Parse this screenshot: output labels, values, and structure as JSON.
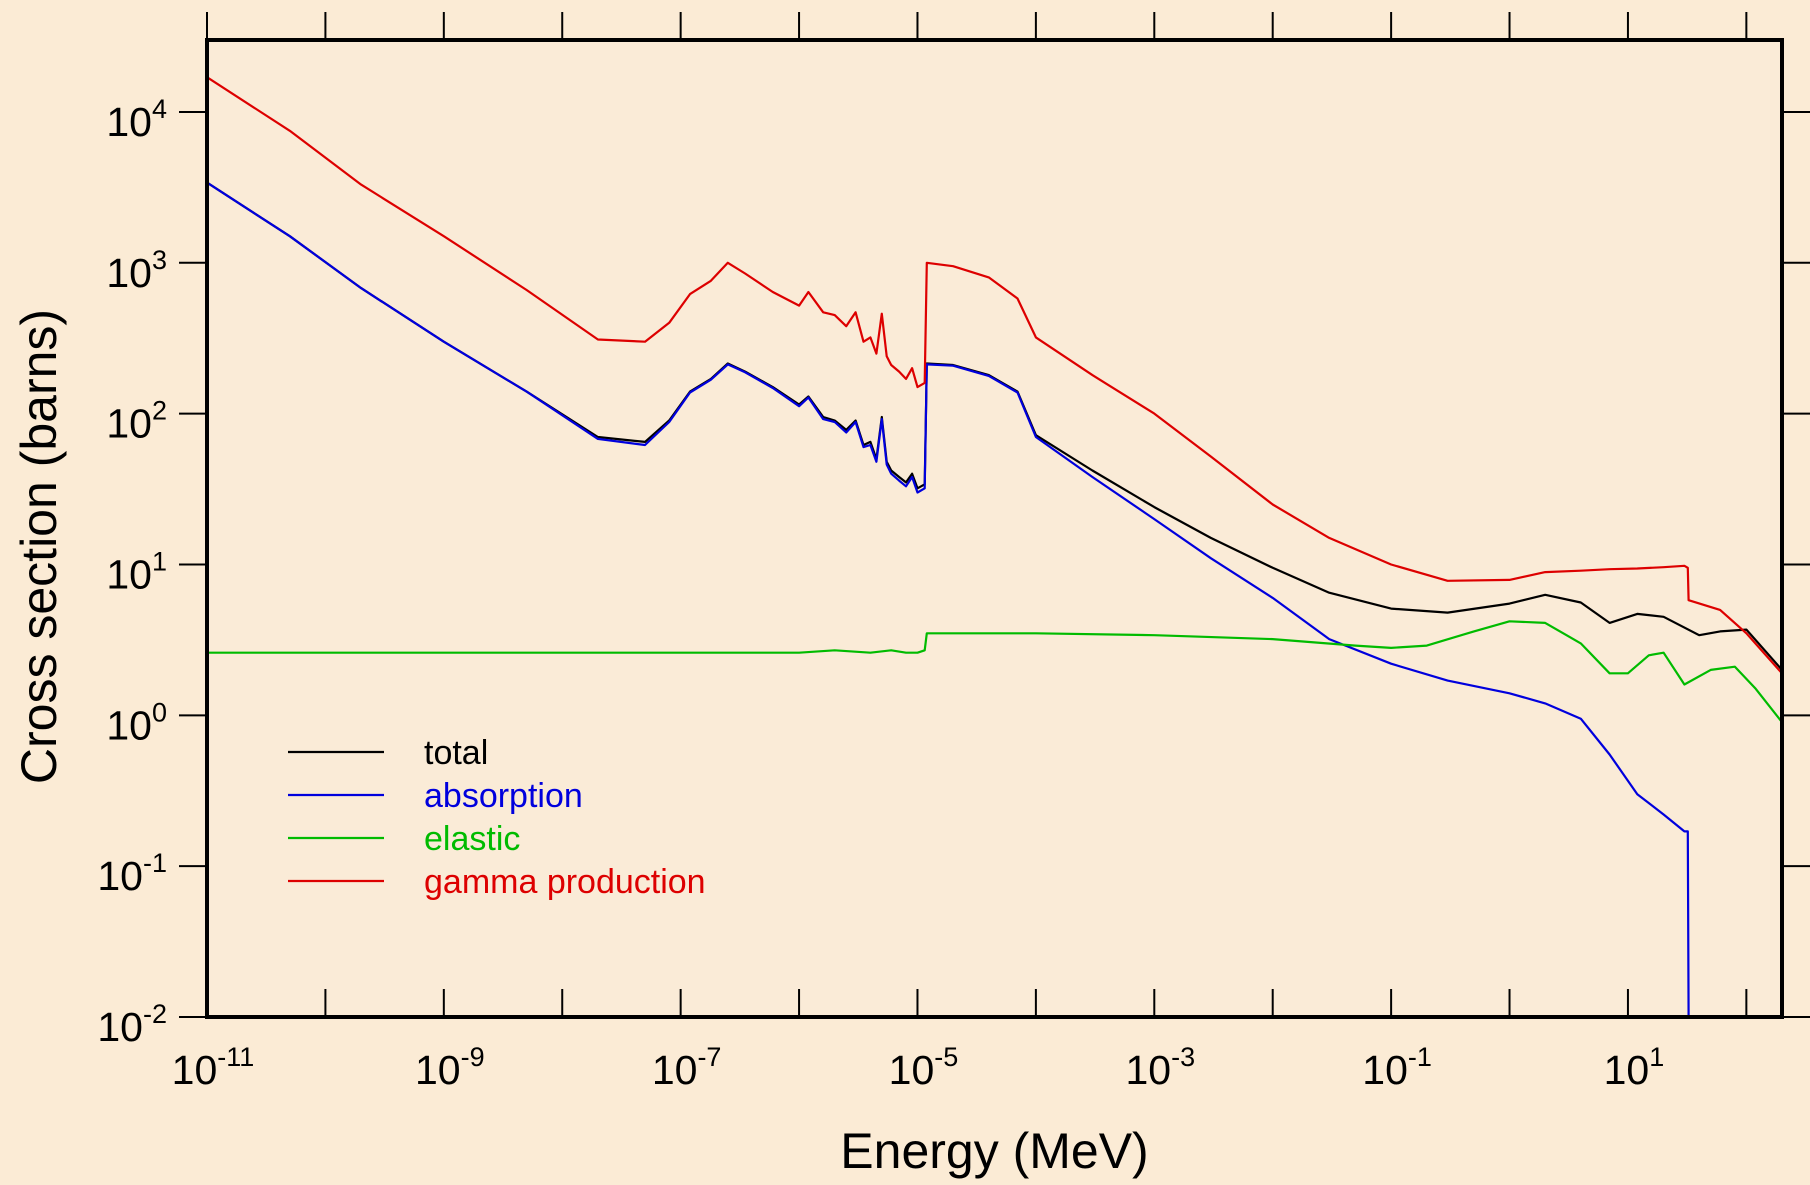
{
  "chart_data": {
    "type": "line",
    "title": "",
    "xlabel": "Energy (MeV)",
    "ylabel": "Cross section (barns)",
    "xscale": "log",
    "yscale": "log",
    "xlim": [
      1e-11,
      200
    ],
    "ylim": [
      0.01,
      30000
    ],
    "x_ticks": [
      {
        "value": 1e-11,
        "base": "10",
        "exp": "-11"
      },
      {
        "value": 1e-09,
        "base": "10",
        "exp": "-9"
      },
      {
        "value": 1e-07,
        "base": "10",
        "exp": "-7"
      },
      {
        "value": 1e-05,
        "base": "10",
        "exp": "-5"
      },
      {
        "value": 0.001,
        "base": "10",
        "exp": "-3"
      },
      {
        "value": 0.1,
        "base": "10",
        "exp": "-1"
      },
      {
        "value": 10,
        "base": "10",
        "exp": "1"
      }
    ],
    "y_ticks": [
      {
        "value": 0.01,
        "base": "10",
        "exp": "-2"
      },
      {
        "value": 0.1,
        "base": "10",
        "exp": "-1"
      },
      {
        "value": 1,
        "base": "10",
        "exp": "0"
      },
      {
        "value": 10,
        "base": "10",
        "exp": "1"
      },
      {
        "value": 100,
        "base": "10",
        "exp": "2"
      },
      {
        "value": 1000,
        "base": "10",
        "exp": "3"
      },
      {
        "value": 10000,
        "base": "10",
        "exp": "4"
      }
    ],
    "grid": false,
    "legend_position": "lower-left",
    "series": [
      {
        "name": "total",
        "color": "#000000",
        "x": [
          1e-11,
          5e-11,
          2e-10,
          1e-09,
          5e-09,
          2e-08,
          5e-08,
          8e-08,
          1.2e-07,
          1.8e-07,
          2.5e-07,
          3.5e-07,
          6e-07,
          1e-06,
          1.2e-06,
          1.6e-06,
          2e-06,
          2.5e-06,
          3e-06,
          3.5e-06,
          4e-06,
          4.5e-06,
          5e-06,
          5.5e-06,
          6e-06,
          7e-06,
          8e-06,
          9e-06,
          1e-05,
          1.15e-05,
          1.2e-05,
          2e-05,
          4e-05,
          7e-05,
          0.0001,
          0.0003,
          0.001,
          0.003,
          0.01,
          0.03,
          0.1,
          0.3,
          1,
          2,
          4,
          7,
          12,
          20,
          40,
          60,
          100,
          200
        ],
        "y": [
          3400,
          1500,
          680,
          300,
          140,
          70,
          65,
          90,
          140,
          170,
          215,
          190,
          150,
          115,
          130,
          95,
          90,
          78,
          90,
          62,
          65,
          50,
          95,
          48,
          42,
          38,
          35,
          40,
          32,
          34,
          215,
          210,
          180,
          140,
          72,
          42,
          24,
          15,
          9.5,
          6.5,
          5.1,
          4.8,
          5.5,
          6.3,
          5.6,
          4.1,
          4.7,
          4.5,
          3.4,
          3.6,
          3.7,
          2.0
        ]
      },
      {
        "name": "absorption",
        "color": "#0000dd",
        "x": [
          1e-11,
          5e-11,
          2e-10,
          1e-09,
          5e-09,
          2e-08,
          5e-08,
          8e-08,
          1.2e-07,
          1.8e-07,
          2.5e-07,
          3.5e-07,
          6e-07,
          1e-06,
          1.2e-06,
          1.6e-06,
          2e-06,
          2.5e-06,
          3e-06,
          3.5e-06,
          4e-06,
          4.5e-06,
          5e-06,
          5.5e-06,
          6e-06,
          7e-06,
          8e-06,
          9e-06,
          1e-05,
          1.15e-05,
          1.2e-05,
          2e-05,
          4e-05,
          7e-05,
          0.0001,
          0.0003,
          0.001,
          0.003,
          0.01,
          0.03,
          0.1,
          0.3,
          1,
          2,
          4,
          7,
          12,
          20,
          30,
          32,
          32.5,
          60,
          100,
          200
        ],
        "y": [
          3400,
          1500,
          680,
          300,
          140,
          68,
          62,
          88,
          138,
          168,
          212,
          188,
          148,
          112,
          128,
          92,
          88,
          75,
          88,
          60,
          62,
          48,
          92,
          46,
          40,
          36,
          33,
          38,
          30,
          32,
          212,
          208,
          178,
          138,
          70,
          38,
          20,
          11,
          6,
          3.2,
          2.2,
          1.7,
          1.4,
          1.2,
          0.95,
          0.55,
          0.3,
          0.22,
          0.17,
          0.17,
          0.01,
          0.01,
          0.01,
          0.01
        ]
      },
      {
        "name": "elastic",
        "color": "#00bb00",
        "x": [
          1e-11,
          1e-09,
          1e-07,
          1e-06,
          2e-06,
          4e-06,
          6e-06,
          8e-06,
          1e-05,
          1.15e-05,
          1.2e-05,
          0.0001,
          0.001,
          0.01,
          0.05,
          0.1,
          0.2,
          0.5,
          1,
          2,
          4,
          7,
          10,
          15,
          20,
          30,
          50,
          80,
          120,
          200
        ],
        "y": [
          2.6,
          2.6,
          2.6,
          2.6,
          2.7,
          2.6,
          2.7,
          2.6,
          2.6,
          2.7,
          3.5,
          3.5,
          3.4,
          3.2,
          2.9,
          2.8,
          2.9,
          3.6,
          4.2,
          4.1,
          3.0,
          1.9,
          1.9,
          2.5,
          2.6,
          1.6,
          2.0,
          2.1,
          1.5,
          0.9
        ]
      },
      {
        "name": "gamma production",
        "color": "#dd0000",
        "x": [
          1e-11,
          5e-11,
          2e-10,
          1e-09,
          5e-09,
          2e-08,
          5e-08,
          8e-08,
          1.2e-07,
          1.8e-07,
          2.5e-07,
          3.5e-07,
          6e-07,
          1e-06,
          1.2e-06,
          1.6e-06,
          2e-06,
          2.5e-06,
          3e-06,
          3.5e-06,
          4e-06,
          4.5e-06,
          5e-06,
          5.5e-06,
          6e-06,
          7e-06,
          8e-06,
          9e-06,
          1e-05,
          1.15e-05,
          1.2e-05,
          2e-05,
          4e-05,
          7e-05,
          0.0001,
          0.0003,
          0.001,
          0.003,
          0.01,
          0.03,
          0.1,
          0.3,
          1,
          2,
          4,
          7,
          12,
          20,
          30,
          32,
          32.5,
          60,
          100,
          200
        ],
        "y": [
          17000,
          7500,
          3300,
          1500,
          660,
          310,
          300,
          400,
          620,
          760,
          1000,
          850,
          640,
          520,
          640,
          470,
          450,
          380,
          470,
          300,
          320,
          250,
          460,
          240,
          210,
          190,
          170,
          200,
          150,
          160,
          1000,
          950,
          800,
          580,
          320,
          180,
          100,
          52,
          25,
          15,
          10,
          7.8,
          7.9,
          8.9,
          9.1,
          9.3,
          9.4,
          9.6,
          9.8,
          9.5,
          5.8,
          5.0,
          3.5,
          1.9
        ]
      }
    ]
  }
}
